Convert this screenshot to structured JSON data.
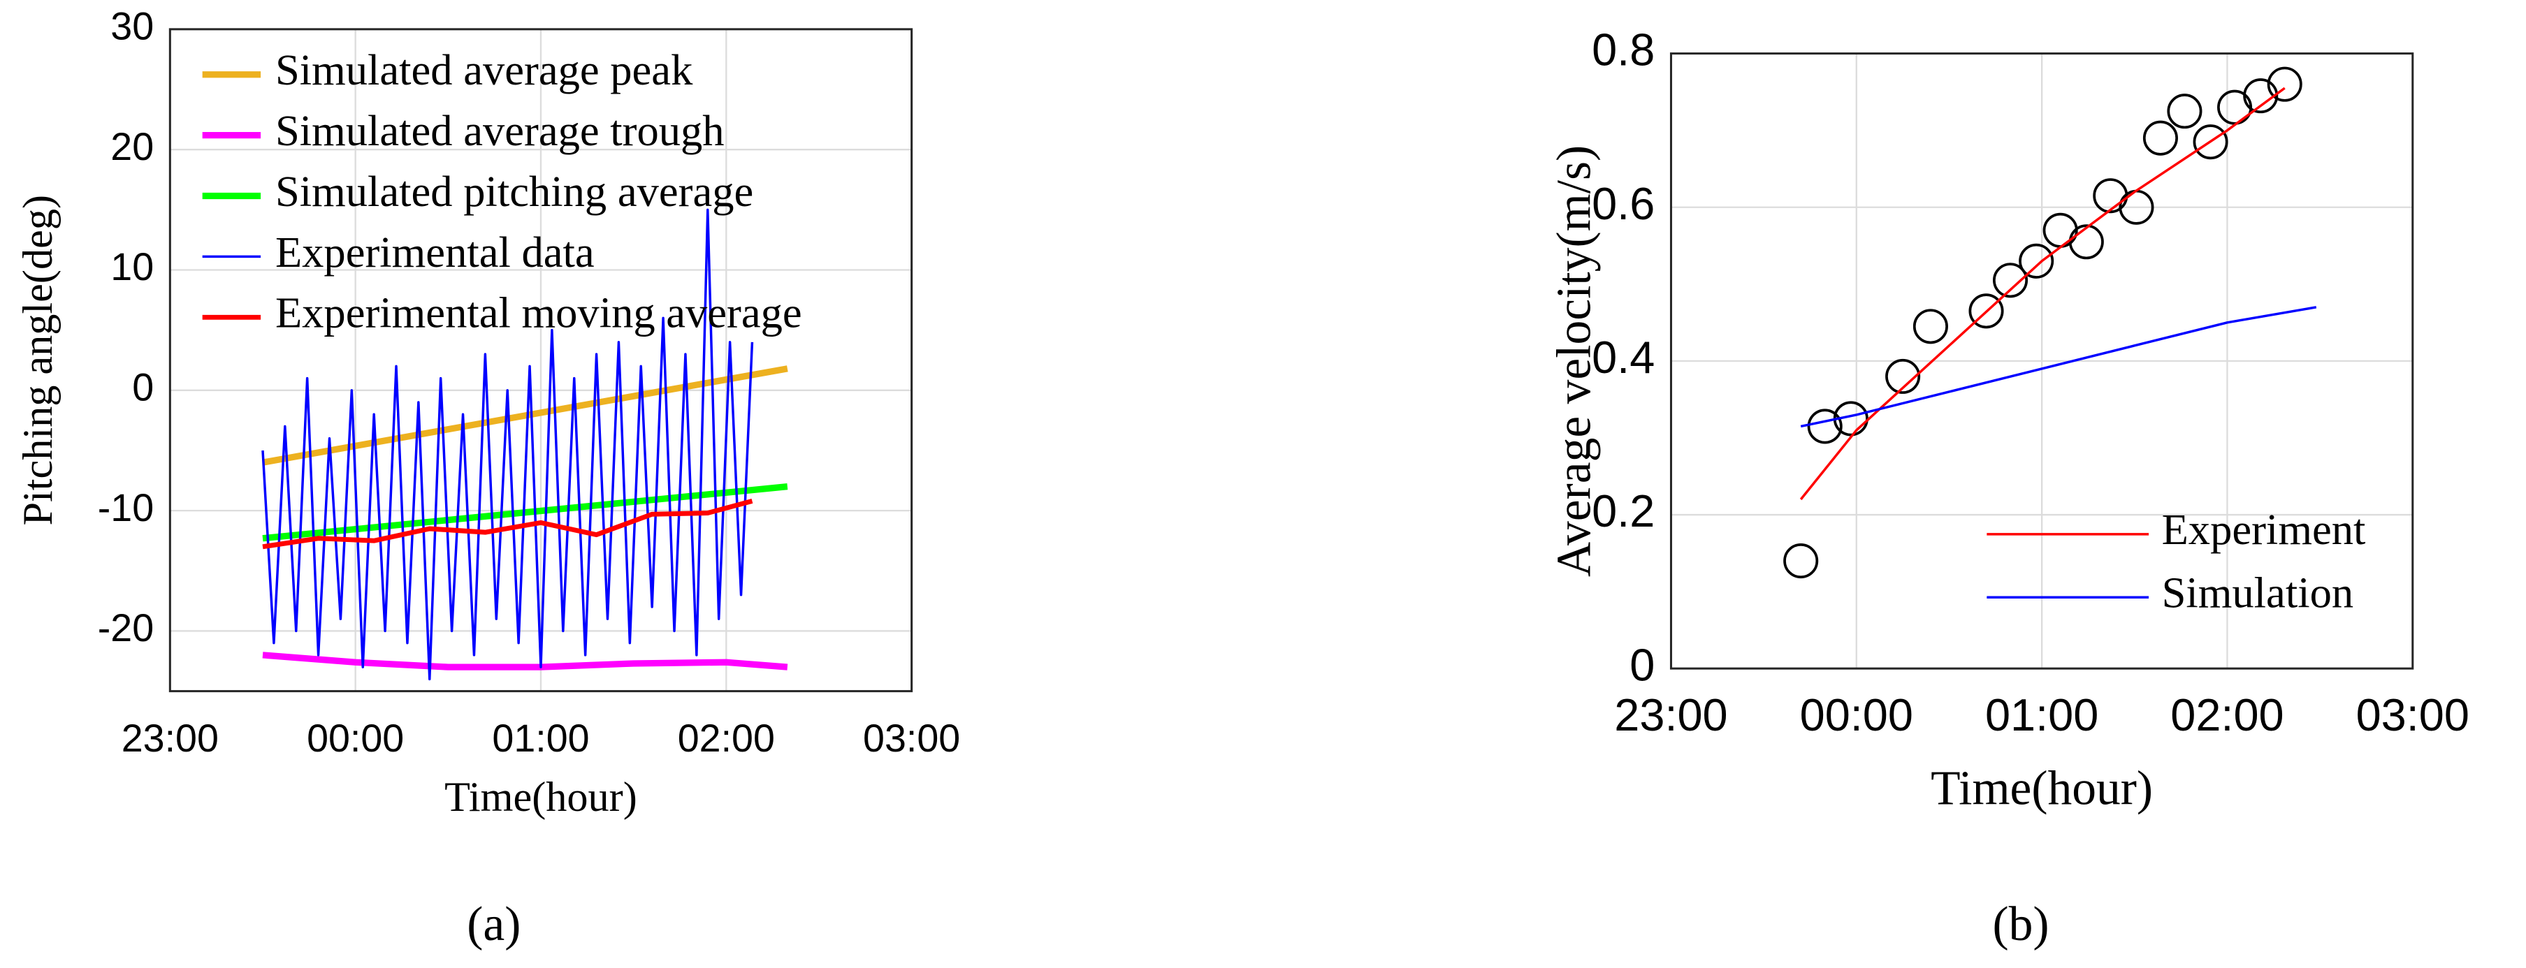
{
  "chart_data": [
    {
      "type": "line",
      "caption": "(a)",
      "xlabel": "Time(hour)",
      "ylabel": "Pitching angle(deg)",
      "xlim": [
        23,
        27
      ],
      "xticks": [
        {
          "value": 23,
          "label": "23:00"
        },
        {
          "value": 24,
          "label": "00:00"
        },
        {
          "value": 25,
          "label": "01:00"
        },
        {
          "value": 26,
          "label": "02:00"
        },
        {
          "value": 27,
          "label": "03:00"
        }
      ],
      "ylim": [
        -25,
        30
      ],
      "yticks": [
        -20,
        -10,
        0,
        10,
        20,
        30
      ],
      "grid": true,
      "legend": "upper left",
      "series": [
        {
          "name": "Simulated average peak",
          "color": "#EDB120",
          "width": 4,
          "x": [
            23.5,
            26.33
          ],
          "values": [
            -6,
            1.8
          ]
        },
        {
          "name": "Simulated average trough",
          "color": "#FF00FF",
          "width": 4,
          "x": [
            23.5,
            24.0,
            24.5,
            25.0,
            25.5,
            26.0,
            26.33
          ],
          "values": [
            -22,
            -22.6,
            -23,
            -23,
            -22.7,
            -22.6,
            -23
          ]
        },
        {
          "name": "Simulated pitching average",
          "color": "#00FF00",
          "width": 4,
          "x": [
            23.5,
            26.33
          ],
          "values": [
            -12.3,
            -8
          ]
        },
        {
          "name": "Experimental data",
          "color": "#0000FF",
          "width": 1.5,
          "x": [
            23.5,
            23.56,
            23.62,
            23.68,
            23.74,
            23.8,
            23.86,
            23.92,
            23.98,
            24.04,
            24.1,
            24.16,
            24.22,
            24.28,
            24.34,
            24.4,
            24.46,
            24.52,
            24.58,
            24.64,
            24.7,
            24.76,
            24.82,
            24.88,
            24.94,
            25.0,
            25.06,
            25.12,
            25.18,
            25.24,
            25.3,
            25.36,
            25.42,
            25.48,
            25.54,
            25.6,
            25.66,
            25.72,
            25.78,
            25.84,
            25.9,
            25.96,
            26.02,
            26.08,
            26.14
          ],
          "values": [
            -5,
            -21,
            -3,
            -20,
            1,
            -22,
            -4,
            -19,
            0,
            -23,
            -2,
            -20,
            2,
            -21,
            -1,
            -24,
            1,
            -20,
            -2,
            -22,
            3,
            -19,
            0,
            -21,
            2,
            -23,
            5,
            -20,
            1,
            -22,
            3,
            -19,
            4,
            -21,
            2,
            -18,
            6,
            -20,
            3,
            -22,
            15,
            -19,
            4,
            -17,
            4
          ]
        },
        {
          "name": "Experimental moving average",
          "color": "#FF0000",
          "width": 3,
          "x": [
            23.5,
            23.8,
            24.1,
            24.4,
            24.7,
            25.0,
            25.3,
            25.6,
            25.9,
            26.14
          ],
          "values": [
            -13,
            -12.3,
            -12.5,
            -11.5,
            -11.8,
            -11,
            -12,
            -10.3,
            -10.2,
            -9.2
          ]
        }
      ]
    },
    {
      "type": "line",
      "caption": "(b)",
      "xlabel": "Time(hour)",
      "ylabel": "Average velocity(m/s)",
      "xlim": [
        23,
        27
      ],
      "xticks": [
        {
          "value": 23,
          "label": "23:00"
        },
        {
          "value": 24,
          "label": "00:00"
        },
        {
          "value": 25,
          "label": "01:00"
        },
        {
          "value": 26,
          "label": "02:00"
        },
        {
          "value": 27,
          "label": "03:00"
        }
      ],
      "ylim": [
        0,
        0.8
      ],
      "yticks": [
        0,
        0.2,
        0.4,
        0.6,
        0.8
      ],
      "grid": true,
      "legend": "lower right",
      "series": [
        {
          "color": "#000000",
          "marker": "circle",
          "x": [
            23.7,
            23.83,
            23.97,
            24.25,
            24.4,
            24.7,
            24.83,
            24.97,
            25.1,
            25.24,
            25.37,
            25.51,
            25.64,
            25.77,
            25.91,
            26.04,
            26.18,
            26.31
          ],
          "values": [
            0.14,
            0.315,
            0.325,
            0.38,
            0.445,
            0.465,
            0.505,
            0.53,
            0.57,
            0.555,
            0.615,
            0.6,
            0.69,
            0.725,
            0.685,
            0.73,
            0.745,
            0.76
          ]
        },
        {
          "name": "Experiment",
          "color": "#FF0000",
          "width": 1.5,
          "x": [
            23.7,
            24.0,
            24.5,
            25.0,
            25.5,
            26.0,
            26.31
          ],
          "values": [
            0.22,
            0.31,
            0.42,
            0.53,
            0.62,
            0.7,
            0.755
          ]
        },
        {
          "name": "Simulation",
          "color": "#0000FF",
          "width": 1.5,
          "x": [
            23.7,
            24.0,
            24.5,
            25.0,
            25.5,
            26.0,
            26.48
          ],
          "values": [
            0.315,
            0.33,
            0.36,
            0.39,
            0.42,
            0.45,
            0.47
          ]
        }
      ]
    }
  ]
}
